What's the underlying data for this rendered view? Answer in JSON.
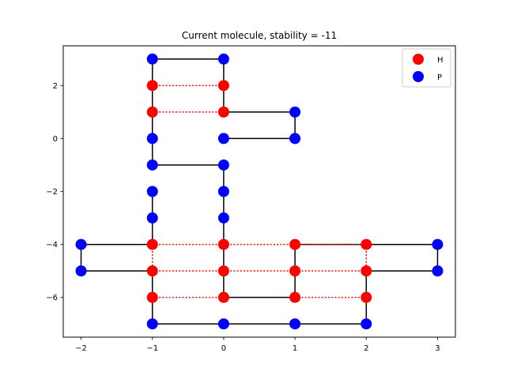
{
  "chart_data": {
    "type": "scatter",
    "title": "Current molecule, stability = -11",
    "xlabel": "",
    "ylabel": "",
    "xlim": [
      -2.25,
      3.25
    ],
    "ylim": [
      -7.5,
      3.5
    ],
    "x_ticks": [
      -2,
      -1,
      0,
      1,
      2,
      3
    ],
    "y_ticks": [
      2,
      0,
      -2,
      -4,
      -6
    ],
    "x_tick_labels": [
      "−2",
      "−1",
      "0",
      "1",
      "2",
      "3"
    ],
    "y_tick_labels": [
      "2",
      "0",
      "−2",
      "−4",
      "−6"
    ],
    "grid": false,
    "legend": {
      "placement": "top-right",
      "entries": [
        {
          "label": "H",
          "color": "#ff0000"
        },
        {
          "label": "P",
          "color": "#0000ff"
        }
      ]
    },
    "colors": {
      "H": "#ff0000",
      "P": "#0000ff",
      "chain": "#000000",
      "contact": "#ff0000"
    },
    "chain": [
      {
        "x": 2,
        "y": -7,
        "type": "P"
      },
      {
        "x": 2,
        "y": -6,
        "type": "H"
      },
      {
        "x": 2,
        "y": -5,
        "type": "H"
      },
      {
        "x": 3,
        "y": -5,
        "type": "P"
      },
      {
        "x": 3,
        "y": -4,
        "type": "P"
      },
      {
        "x": 2,
        "y": -4,
        "type": "H"
      },
      {
        "x": 1,
        "y": -4,
        "type": "H"
      },
      {
        "x": 1,
        "y": -5,
        "type": "H"
      },
      {
        "x": 1,
        "y": -6,
        "type": "H"
      },
      {
        "x": 0,
        "y": -6,
        "type": "H"
      },
      {
        "x": 0,
        "y": -5,
        "type": "H"
      },
      {
        "x": 0,
        "y": -4,
        "type": "H"
      },
      {
        "x": 0,
        "y": -3,
        "type": "P"
      },
      {
        "x": 0,
        "y": -2,
        "type": "P"
      },
      {
        "x": 0,
        "y": -1,
        "type": "P"
      },
      {
        "x": -1,
        "y": -1,
        "type": "P"
      },
      {
        "x": -1,
        "y": 0,
        "type": "P"
      },
      {
        "x": -1,
        "y": 1,
        "type": "H"
      },
      {
        "x": -1,
        "y": 2,
        "type": "H"
      },
      {
        "x": -1,
        "y": 3,
        "type": "P"
      },
      {
        "x": 0,
        "y": 3,
        "type": "P"
      },
      {
        "x": 0,
        "y": 2,
        "type": "H"
      },
      {
        "x": 0,
        "y": 1,
        "type": "H"
      },
      {
        "x": 1,
        "y": 1,
        "type": "P"
      },
      {
        "x": 1,
        "y": 0,
        "type": "P"
      },
      {
        "x": 0,
        "y": 0,
        "type": "P"
      },
      {
        "x": -1,
        "y": -2,
        "type": "P"
      },
      {
        "x": -1,
        "y": -3,
        "type": "P"
      },
      {
        "x": -1,
        "y": -4,
        "type": "H"
      },
      {
        "x": -2,
        "y": -4,
        "type": "P"
      },
      {
        "x": -2,
        "y": -5,
        "type": "P"
      },
      {
        "x": -1,
        "y": -5,
        "type": "H"
      },
      {
        "x": -1,
        "y": -6,
        "type": "H"
      },
      {
        "x": -1,
        "y": -7,
        "type": "P"
      },
      {
        "x": 0,
        "y": -7,
        "type": "P"
      },
      {
        "x": 1,
        "y": -7,
        "type": "P"
      }
    ],
    "chain_links": [
      [
        [
          2,
          -7
        ],
        [
          2,
          -6
        ]
      ],
      [
        [
          2,
          -6
        ],
        [
          2,
          -5
        ]
      ],
      [
        [
          2,
          -5
        ],
        [
          3,
          -5
        ]
      ],
      [
        [
          3,
          -5
        ],
        [
          3,
          -4
        ]
      ],
      [
        [
          3,
          -4
        ],
        [
          2,
          -4
        ]
      ],
      [
        [
          2,
          -4
        ],
        [
          1,
          -4
        ]
      ],
      [
        [
          1,
          -4
        ],
        [
          1,
          -5
        ]
      ],
      [
        [
          1,
          -5
        ],
        [
          1,
          -6
        ]
      ],
      [
        [
          1,
          -6
        ],
        [
          0,
          -6
        ]
      ],
      [
        [
          0,
          -6
        ],
        [
          0,
          -5
        ]
      ],
      [
        [
          0,
          -5
        ],
        [
          0,
          -4
        ]
      ],
      [
        [
          0,
          -4
        ],
        [
          0,
          -3
        ]
      ],
      [
        [
          0,
          -3
        ],
        [
          0,
          -2
        ]
      ],
      [
        [
          0,
          -2
        ],
        [
          0,
          -1
        ]
      ],
      [
        [
          0,
          -1
        ],
        [
          -1,
          -1
        ]
      ],
      [
        [
          -1,
          -1
        ],
        [
          -1,
          0
        ]
      ],
      [
        [
          -1,
          0
        ],
        [
          -1,
          1
        ]
      ],
      [
        [
          -1,
          1
        ],
        [
          -1,
          2
        ]
      ],
      [
        [
          -1,
          2
        ],
        [
          -1,
          3
        ]
      ],
      [
        [
          -1,
          3
        ],
        [
          0,
          3
        ]
      ],
      [
        [
          0,
          3
        ],
        [
          0,
          2
        ]
      ],
      [
        [
          0,
          2
        ],
        [
          0,
          1
        ]
      ],
      [
        [
          0,
          1
        ],
        [
          1,
          1
        ]
      ],
      [
        [
          1,
          1
        ],
        [
          1,
          0
        ]
      ],
      [
        [
          1,
          0
        ],
        [
          0,
          0
        ]
      ],
      [
        [
          -1,
          -2
        ],
        [
          -1,
          -3
        ]
      ],
      [
        [
          -1,
          -3
        ],
        [
          -1,
          -4
        ]
      ],
      [
        [
          -1,
          -4
        ],
        [
          -2,
          -4
        ]
      ],
      [
        [
          -2,
          -4
        ],
        [
          -2,
          -5
        ]
      ],
      [
        [
          -2,
          -5
        ],
        [
          -1,
          -5
        ]
      ],
      [
        [
          -1,
          -5
        ],
        [
          -1,
          -6
        ]
      ],
      [
        [
          -1,
          -6
        ],
        [
          -1,
          -7
        ]
      ],
      [
        [
          -1,
          -7
        ],
        [
          0,
          -7
        ]
      ],
      [
        [
          0,
          -7
        ],
        [
          1,
          -7
        ]
      ],
      [
        [
          1,
          -7
        ],
        [
          2,
          -7
        ]
      ]
    ],
    "contacts": [
      [
        [
          -1,
          2
        ],
        [
          0,
          2
        ]
      ],
      [
        [
          -1,
          1
        ],
        [
          0,
          1
        ]
      ],
      [
        [
          -1,
          -4
        ],
        [
          0,
          -4
        ]
      ],
      [
        [
          0,
          -4
        ],
        [
          1,
          -4
        ]
      ],
      [
        [
          1,
          -4
        ],
        [
          2,
          -4
        ]
      ],
      [
        [
          -1,
          -5
        ],
        [
          0,
          -5
        ]
      ],
      [
        [
          0,
          -5
        ],
        [
          1,
          -5
        ]
      ],
      [
        [
          1,
          -5
        ],
        [
          2,
          -5
        ]
      ],
      [
        [
          -1,
          -6
        ],
        [
          0,
          -6
        ]
      ],
      [
        [
          1,
          -6
        ],
        [
          2,
          -6
        ]
      ],
      [
        [
          -1,
          -4
        ],
        [
          -1,
          -5
        ]
      ],
      [
        [
          2,
          -4
        ],
        [
          2,
          -5
        ]
      ]
    ]
  }
}
